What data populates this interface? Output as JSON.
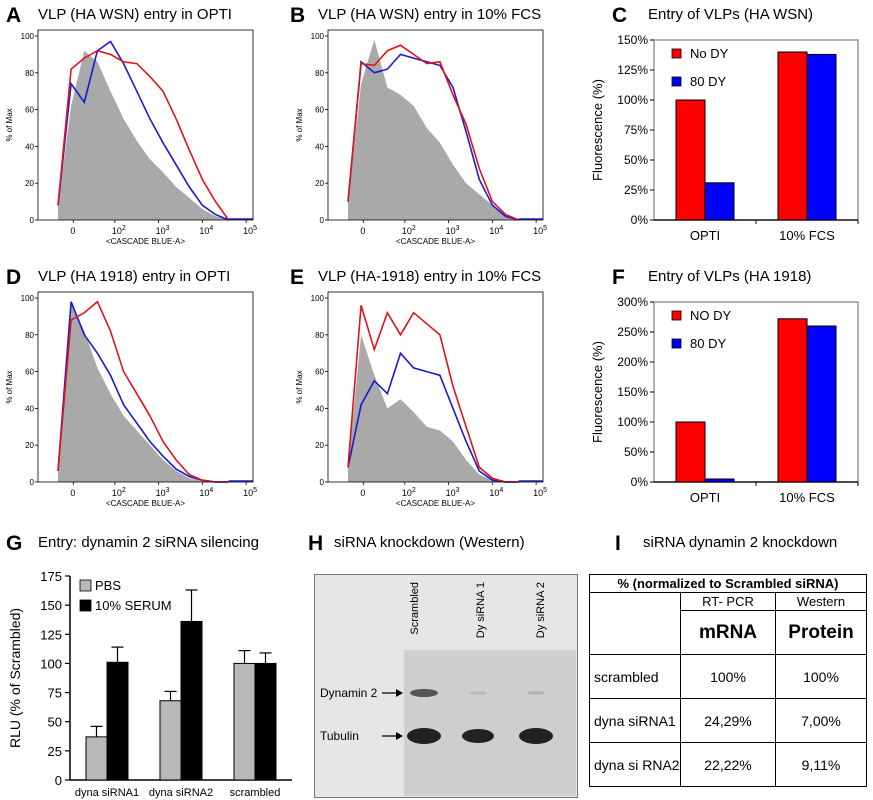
{
  "panels": {
    "A": {
      "letter": "A",
      "title": "VLP (HA WSN) entry in OPTI"
    },
    "B": {
      "letter": "B",
      "title": "VLP (HA WSN) entry in 10% FCS"
    },
    "C": {
      "letter": "C",
      "title": "Entry of VLPs (HA WSN)"
    },
    "D": {
      "letter": "D",
      "title": "VLP (HA 1918) entry in OPTI"
    },
    "E": {
      "letter": "E",
      "title": "VLP (HA-1918) entry in 10% FCS"
    },
    "F": {
      "letter": "F",
      "title": "Entry of VLPs (HA 1918)"
    },
    "G": {
      "letter": "G",
      "title": "Entry: dynamin 2 siRNA silencing"
    },
    "H": {
      "letter": "H",
      "title": "siRNA knockdown (Western)"
    },
    "I": {
      "letter": "I",
      "title": "siRNA dynamin 2 knockdown"
    }
  },
  "flow": {
    "ylabel": "% of Max",
    "xlabel": "<CASCADE BLUE-A>",
    "yticks": [
      "0",
      "20",
      "40",
      "60",
      "80",
      "100"
    ],
    "xticks": [
      {
        "base": "0",
        "exp": ""
      },
      {
        "base": "10",
        "exp": "2"
      },
      {
        "base": "10",
        "exp": "3"
      },
      {
        "base": "10",
        "exp": "4"
      },
      {
        "base": "10",
        "exp": "5"
      }
    ]
  },
  "colors": {
    "red": "#e0141a",
    "blue": "#1a1ad0",
    "grey": "#a9a9a9",
    "bar_red": "#ff0000",
    "bar_blue": "#0000ff",
    "pbs": "#b8b8b8",
    "serum": "#000000"
  },
  "chart_data": [
    {
      "panel": "A",
      "type": "area",
      "xlabel": "<CASCADE BLUE-A>",
      "ylabel": "% of Max",
      "ylim": [
        0,
        100
      ],
      "series": [
        {
          "color": "grey",
          "x": [
            0,
            0.3,
            0.6,
            0.9,
            1.2,
            1.5,
            1.8,
            2.1,
            2.4,
            2.7,
            3.0,
            3.3,
            3.6,
            3.9
          ],
          "y": [
            8,
            62,
            92,
            86,
            70,
            55,
            43,
            33,
            26,
            18,
            12,
            6,
            2,
            0
          ]
        },
        {
          "color": "blue",
          "x": [
            0,
            0.3,
            0.6,
            0.9,
            1.2,
            1.5,
            1.8,
            2.1,
            2.4,
            2.7,
            3.0,
            3.3,
            3.6,
            3.9
          ],
          "y": [
            8,
            74,
            64,
            92,
            97,
            85,
            70,
            55,
            42,
            30,
            18,
            8,
            3,
            0
          ]
        },
        {
          "color": "red",
          "x": [
            0,
            0.3,
            0.6,
            0.9,
            1.2,
            1.5,
            1.8,
            2.1,
            2.4,
            2.7,
            3.0,
            3.3,
            3.6,
            3.9
          ],
          "y": [
            8,
            82,
            88,
            92,
            90,
            86,
            85,
            78,
            70,
            55,
            38,
            22,
            10,
            0
          ]
        }
      ]
    },
    {
      "panel": "B",
      "type": "area",
      "xlabel": "<CASCADE BLUE-A>",
      "ylabel": "% of Max",
      "ylim": [
        0,
        100
      ],
      "series": [
        {
          "color": "grey",
          "x": [
            0,
            0.3,
            0.6,
            0.9,
            1.2,
            1.5,
            1.8,
            2.1,
            2.4,
            2.7,
            3.0,
            3.3,
            3.6,
            3.9
          ],
          "y": [
            10,
            74,
            98,
            72,
            68,
            62,
            50,
            42,
            30,
            20,
            14,
            8,
            2,
            0
          ]
        },
        {
          "color": "blue",
          "x": [
            0,
            0.3,
            0.6,
            0.9,
            1.2,
            1.5,
            1.8,
            2.1,
            2.4,
            2.7,
            3.0,
            3.3,
            3.6,
            3.9
          ],
          "y": [
            10,
            86,
            80,
            82,
            90,
            88,
            86,
            84,
            72,
            48,
            22,
            8,
            2,
            0
          ]
        },
        {
          "color": "red",
          "x": [
            0,
            0.3,
            0.6,
            0.9,
            1.2,
            1.5,
            1.8,
            2.1,
            2.4,
            2.7,
            3.0,
            3.3,
            3.6,
            3.9
          ],
          "y": [
            10,
            85,
            84,
            92,
            95,
            90,
            85,
            86,
            68,
            52,
            28,
            10,
            3,
            0
          ]
        }
      ]
    },
    {
      "panel": "C",
      "type": "bar",
      "title": "Entry of VLPs (HA WSN)",
      "ylabel": "Fluorescence (%)",
      "ylim": [
        0,
        150
      ],
      "yticks": [
        "0%",
        "25%",
        "50%",
        "75%",
        "100%",
        "125%",
        "150%"
      ],
      "categories": [
        "OPTI",
        "10% FCS"
      ],
      "series": [
        {
          "name": "No DY",
          "color": "bar_red",
          "values": [
            100,
            140
          ]
        },
        {
          "name": "80 DY",
          "color": "bar_blue",
          "values": [
            31,
            138
          ]
        }
      ]
    },
    {
      "panel": "D",
      "type": "area",
      "xlabel": "<CASCADE BLUE-A>",
      "ylabel": "% of Max",
      "ylim": [
        0,
        100
      ],
      "series": [
        {
          "color": "grey",
          "x": [
            0,
            0.3,
            0.6,
            0.9,
            1.2,
            1.5,
            1.8,
            2.1,
            2.4,
            2.7,
            3.0,
            3.3,
            3.6,
            3.9
          ],
          "y": [
            6,
            98,
            82,
            62,
            48,
            36,
            28,
            20,
            12,
            6,
            2,
            1,
            0,
            0
          ]
        },
        {
          "color": "blue",
          "x": [
            0,
            0.3,
            0.6,
            0.9,
            1.2,
            1.5,
            1.8,
            2.1,
            2.4,
            2.7,
            3.0,
            3.3,
            3.6,
            3.9
          ],
          "y": [
            6,
            98,
            80,
            70,
            58,
            42,
            32,
            22,
            14,
            7,
            3,
            1,
            0,
            0
          ]
        },
        {
          "color": "red",
          "x": [
            0,
            0.3,
            0.6,
            0.9,
            1.2,
            1.5,
            1.8,
            2.1,
            2.4,
            2.7,
            3.0,
            3.3,
            3.6,
            3.9
          ],
          "y": [
            6,
            88,
            92,
            98,
            82,
            60,
            48,
            36,
            22,
            12,
            4,
            1,
            0,
            0
          ]
        }
      ]
    },
    {
      "panel": "E",
      "type": "area",
      "xlabel": "<CASCADE BLUE-A>",
      "ylabel": "% of Max",
      "ylim": [
        0,
        100
      ],
      "series": [
        {
          "color": "grey",
          "x": [
            0,
            0.3,
            0.6,
            0.9,
            1.2,
            1.5,
            1.8,
            2.1,
            2.4,
            2.7,
            3.0,
            3.3,
            3.6,
            3.9
          ],
          "y": [
            8,
            80,
            58,
            40,
            45,
            38,
            30,
            28,
            22,
            12,
            4,
            1,
            0,
            0
          ]
        },
        {
          "color": "blue",
          "x": [
            0,
            0.3,
            0.6,
            0.9,
            1.2,
            1.5,
            1.8,
            2.1,
            2.4,
            2.7,
            3.0,
            3.3,
            3.6,
            3.9
          ],
          "y": [
            8,
            42,
            55,
            48,
            70,
            62,
            60,
            58,
            40,
            22,
            6,
            1,
            0,
            0
          ]
        },
        {
          "color": "red",
          "x": [
            0,
            0.3,
            0.6,
            0.9,
            1.2,
            1.5,
            1.8,
            2.1,
            2.4,
            2.7,
            3.0,
            3.3,
            3.6,
            3.9
          ],
          "y": [
            8,
            96,
            72,
            92,
            80,
            92,
            86,
            80,
            52,
            30,
            8,
            2,
            0,
            0
          ]
        }
      ]
    },
    {
      "panel": "F",
      "type": "bar",
      "title": "Entry of VLPs (HA 1918)",
      "ylabel": "Fluorescence (%)",
      "ylim": [
        0,
        300
      ],
      "yticks": [
        "0%",
        "50%",
        "100%",
        "150%",
        "200%",
        "250%",
        "300%"
      ],
      "categories": [
        "OPTI",
        "10% FCS"
      ],
      "series": [
        {
          "name": "NO DY",
          "color": "bar_red",
          "values": [
            100,
            272
          ]
        },
        {
          "name": "80 DY",
          "color": "bar_blue",
          "values": [
            5,
            260
          ]
        }
      ]
    },
    {
      "panel": "G",
      "type": "bar",
      "title": "Entry: dynamin 2 siRNA silencing",
      "ylabel": "RLU (% of Scrambled)",
      "ylim": [
        0,
        175
      ],
      "yticks": [
        "0",
        "25",
        "50",
        "75",
        "100",
        "125",
        "150",
        "175"
      ],
      "categories": [
        "dyna siRNA1",
        "dyna siRNA2",
        "scrambled"
      ],
      "series": [
        {
          "name": "PBS",
          "color": "pbs",
          "values": [
            37,
            68,
            100
          ],
          "errors": [
            9,
            8,
            11
          ]
        },
        {
          "name": "10% SERUM",
          "color": "serum",
          "values": [
            101,
            136,
            100
          ],
          "errors": [
            13,
            27,
            9
          ]
        }
      ]
    }
  ],
  "western": {
    "lanes": [
      "Scrambled",
      "Dy siRNA 1",
      "Dy siRNA 2"
    ],
    "labels": [
      "Dynamin 2",
      "Tubulin"
    ]
  },
  "table": {
    "header": "% (normalized to Scrambled siRNA)",
    "methods": [
      "RT- PCR",
      "Western"
    ],
    "measures": [
      "mRNA",
      "Protein"
    ],
    "rows": [
      {
        "name": "scrambled",
        "mrna": "100%",
        "protein": "100%"
      },
      {
        "name": "dyna siRNA1",
        "mrna": "24,29%",
        "protein": "7,00%"
      },
      {
        "name": "dyna si RNA2",
        "mrna": "22,22%",
        "protein": "9,11%"
      }
    ]
  }
}
